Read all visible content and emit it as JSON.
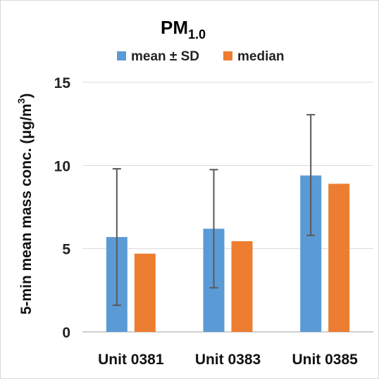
{
  "chart_data": {
    "type": "bar",
    "title": "PM",
    "title_subscript": "1.0",
    "ylabel": "5-min mean mass conc. (μg/m",
    "ylabel_superscript": "3",
    "ylabel_suffix": ")",
    "xlabel": "",
    "categories": [
      "Unit 0381",
      "Unit 0383",
      "Unit 0385"
    ],
    "series": [
      {
        "name": "mean ± SD",
        "color": "#5b9bd5",
        "values": [
          5.7,
          6.2,
          9.4
        ],
        "error_low": [
          1.6,
          2.65,
          5.8
        ],
        "error_high": [
          9.8,
          9.75,
          13.05
        ]
      },
      {
        "name": "median",
        "color": "#ed7d31",
        "values": [
          4.7,
          5.45,
          8.9
        ]
      }
    ],
    "ylim": [
      0,
      15
    ],
    "yticks": [
      0,
      5,
      10,
      15
    ],
    "grid": true,
    "legend_position": "top",
    "error_bar_color": "#595959",
    "grid_color": "#d9d9d9"
  }
}
